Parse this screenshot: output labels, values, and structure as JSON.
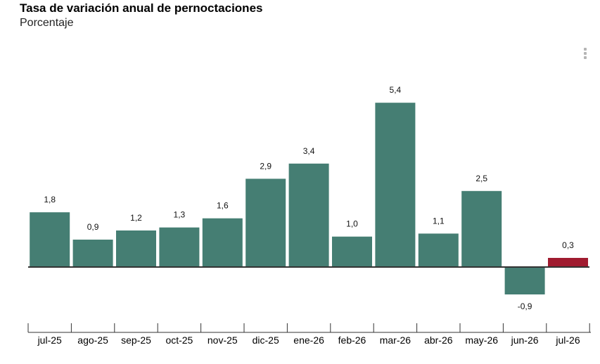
{
  "chart_data": {
    "type": "bar",
    "title": "Tasa de variación anual de pernoctaciones",
    "subtitle": "Porcentaje",
    "categories": [
      "jul-25",
      "ago-25",
      "sep-25",
      "oct-25",
      "nov-25",
      "dic-25",
      "ene-26",
      "feb-26",
      "mar-26",
      "abr-26",
      "may-26",
      "jun-26",
      "jul-26"
    ],
    "values": [
      1.8,
      0.9,
      1.2,
      1.3,
      1.6,
      2.9,
      3.4,
      1.0,
      5.4,
      1.1,
      2.5,
      -0.9,
      0.3
    ],
    "data_labels": [
      "1,8",
      "0,9",
      "1,2",
      "1,3",
      "1,6",
      "2,9",
      "3,4",
      "1,0",
      "5,4",
      "1,1",
      "2,5",
      "-0,9",
      "0,3"
    ],
    "highlight_index": 12,
    "colors": {
      "bar": "#457e73",
      "highlight": "#a01b2f",
      "axis": "#333333"
    },
    "xlabel": "",
    "ylabel": "",
    "grid": false,
    "legend": "none"
  },
  "menu": {
    "icon": "kebab-menu-icon"
  }
}
